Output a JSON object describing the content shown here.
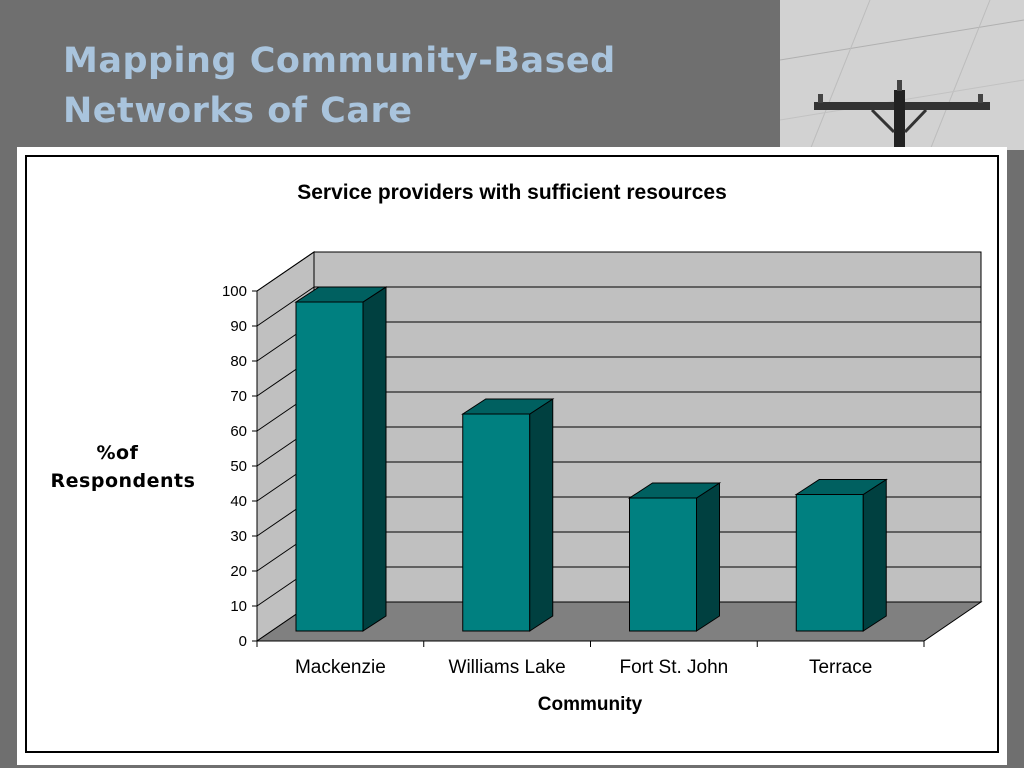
{
  "slide": {
    "title_lines": [
      "Mapping Community-Based",
      "Networks of Care"
    ],
    "title_color": "#a9c4dd",
    "background_color": "#6f6f6f",
    "photo_subject": "utility-pole-icon"
  },
  "chart_data": {
    "type": "bar",
    "style": "3d-column",
    "title": "Service providers with sufficient resources",
    "xlabel": "Community",
    "ylabel_lines": [
      "%of",
      "Respondents"
    ],
    "categories": [
      "Mackenzie",
      "Williams Lake",
      "Fort St. John",
      "Terrace"
    ],
    "values": [
      94,
      62,
      38,
      39
    ],
    "ylim": [
      0,
      100
    ],
    "yticks": [
      "0",
      "10",
      "20",
      "30",
      "40",
      "50",
      "60",
      "70",
      "80",
      "90",
      "100"
    ],
    "grid": true,
    "legend": "none",
    "colors": {
      "bar_front": "#008080",
      "bar_side": "#004040",
      "bar_top": "#006060",
      "back_wall": "#c0c0c0",
      "side_wall": "#c0c0c0",
      "floor": "#808080"
    }
  }
}
